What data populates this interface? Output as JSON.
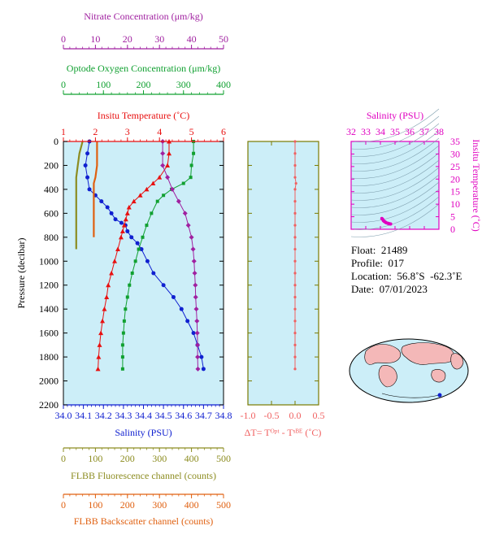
{
  "colors": {
    "salinity": "#1020d0",
    "temperature": "#e81010",
    "oxygen": "#10a030",
    "nitrate": "#a020a0",
    "fluorescence": "#8c8c20",
    "backscatter": "#e06010",
    "deltaT": "#f06060",
    "ts_axis": "#e000c0",
    "plot_bg": "#cceef8",
    "frame": "#7a7a00"
  },
  "info": {
    "float_line": "Float:  21489",
    "profile_line": "Profile:  017",
    "location_line": "Location:  56.8˚S  -62.3˚E",
    "date_line": "Date:  07/01/2023"
  },
  "chart_data": [
    {
      "type": "line",
      "id": "main_profile",
      "ylabel": "Pressure (decibar)",
      "ylim": [
        0,
        2200
      ],
      "y_ticks": [
        "0",
        "200",
        "400",
        "600",
        "800",
        "1000",
        "1200",
        "1400",
        "1600",
        "1800",
        "2000",
        "2200"
      ],
      "axes": {
        "nitrate": {
          "label": "Nitrate Concentration (μm/kg)",
          "range": [
            0,
            50
          ],
          "ticks": [
            "0",
            "10",
            "20",
            "30",
            "40",
            "50"
          ]
        },
        "oxygen": {
          "label": "Optode Oxygen Concentration (μm/kg)",
          "range": [
            0,
            400
          ],
          "ticks": [
            "0",
            "100",
            "200",
            "300",
            "400"
          ]
        },
        "temperature": {
          "label": "Insitu Temperature (˚C)",
          "range": [
            1,
            6
          ],
          "ticks": [
            "1",
            "2",
            "3",
            "4",
            "5",
            "6"
          ]
        },
        "salinity": {
          "label": "Salinity (PSU)",
          "range": [
            34.0,
            34.8
          ],
          "ticks": [
            "34.0",
            "34.1",
            "34.2",
            "34.3",
            "34.4",
            "34.5",
            "34.6",
            "34.7",
            "34.8"
          ]
        },
        "fluorescence": {
          "label": "FLBB Fluorescence channel (counts)",
          "range": [
            0,
            500
          ],
          "ticks": [
            "0",
            "100",
            "200",
            "300",
            "400",
            "500"
          ]
        },
        "backscatter": {
          "label": "FLBB Backscatter channel (counts)",
          "range": [
            0,
            500
          ],
          "ticks": [
            "0",
            "100",
            "200",
            "300",
            "400",
            "500"
          ]
        }
      },
      "series": [
        {
          "key": "salinity",
          "marker": "circle",
          "points": [
            [
              34.13,
              0
            ],
            [
              34.12,
              100
            ],
            [
              34.11,
              200
            ],
            [
              34.12,
              300
            ],
            [
              34.13,
              400
            ],
            [
              34.16,
              450
            ],
            [
              34.19,
              500
            ],
            [
              34.22,
              550
            ],
            [
              34.24,
              600
            ],
            [
              34.26,
              650
            ],
            [
              34.29,
              680
            ],
            [
              34.31,
              700
            ],
            [
              34.32,
              750
            ],
            [
              34.34,
              800
            ],
            [
              34.37,
              850
            ],
            [
              34.39,
              900
            ],
            [
              34.42,
              1000
            ],
            [
              34.45,
              1100
            ],
            [
              34.5,
              1200
            ],
            [
              34.55,
              1300
            ],
            [
              34.59,
              1400
            ],
            [
              34.62,
              1500
            ],
            [
              34.65,
              1600
            ],
            [
              34.67,
              1700
            ],
            [
              34.69,
              1800
            ],
            [
              34.7,
              1900
            ]
          ]
        },
        {
          "key": "temperature",
          "marker": "triangle",
          "points": [
            [
              4.3,
              0
            ],
            [
              4.3,
              100
            ],
            [
              4.25,
              200
            ],
            [
              4.0,
              300
            ],
            [
              3.8,
              350
            ],
            [
              3.6,
              400
            ],
            [
              3.4,
              450
            ],
            [
              3.2,
              500
            ],
            [
              3.05,
              550
            ],
            [
              3.0,
              600
            ],
            [
              2.95,
              650
            ],
            [
              2.9,
              700
            ],
            [
              2.85,
              750
            ],
            [
              2.8,
              800
            ],
            [
              2.7,
              900
            ],
            [
              2.6,
              1000
            ],
            [
              2.5,
              1100
            ],
            [
              2.4,
              1200
            ],
            [
              2.35,
              1300
            ],
            [
              2.28,
              1400
            ],
            [
              2.22,
              1500
            ],
            [
              2.17,
              1600
            ],
            [
              2.13,
              1700
            ],
            [
              2.1,
              1800
            ],
            [
              2.08,
              1900
            ]
          ]
        },
        {
          "key": "oxygen",
          "marker": "square",
          "points": [
            [
              325,
              0
            ],
            [
              325,
              100
            ],
            [
              320,
              200
            ],
            [
              318,
              300
            ],
            [
              300,
              350
            ],
            [
              270,
              400
            ],
            [
              250,
              450
            ],
            [
              235,
              500
            ],
            [
              220,
              600
            ],
            [
              208,
              700
            ],
            [
              198,
              800
            ],
            [
              188,
              900
            ],
            [
              180,
              1000
            ],
            [
              172,
              1100
            ],
            [
              165,
              1200
            ],
            [
              160,
              1300
            ],
            [
              155,
              1400
            ],
            [
              152,
              1500
            ],
            [
              150,
              1600
            ],
            [
              148,
              1700
            ],
            [
              148,
              1800
            ],
            [
              148,
              1900
            ]
          ]
        },
        {
          "key": "nitrate",
          "marker": "diamond",
          "points": [
            [
              31,
              0
            ],
            [
              31,
              100
            ],
            [
              31,
              200
            ],
            [
              32.5,
              300
            ],
            [
              34,
              400
            ],
            [
              36,
              500
            ],
            [
              38,
              600
            ],
            [
              39,
              700
            ],
            [
              40,
              800
            ],
            [
              40.5,
              900
            ],
            [
              40.8,
              1000
            ],
            [
              41,
              1100
            ],
            [
              41.2,
              1200
            ],
            [
              41.3,
              1300
            ],
            [
              41.5,
              1400
            ],
            [
              41.7,
              1500
            ],
            [
              41.8,
              1600
            ],
            [
              41.9,
              1700
            ],
            [
              41.9,
              1800
            ],
            [
              42,
              1900
            ]
          ]
        },
        {
          "key": "fluorescence",
          "marker": "none",
          "points": [
            [
              60,
              0
            ],
            [
              50,
              100
            ],
            [
              45,
              200
            ],
            [
              40,
              300
            ],
            [
              40,
              400
            ],
            [
              40,
              500
            ],
            [
              40,
              600
            ],
            [
              40,
              700
            ],
            [
              40,
              800
            ],
            [
              40,
              900
            ]
          ]
        },
        {
          "key": "backscatter",
          "marker": "none",
          "points": [
            [
              105,
              0
            ],
            [
              105,
              100
            ],
            [
              105,
              200
            ],
            [
              100,
              300
            ],
            [
              95,
              350
            ],
            [
              95,
              400
            ],
            [
              95,
              500
            ],
            [
              95,
              600
            ],
            [
              95,
              700
            ],
            [
              95,
              800
            ]
          ]
        }
      ]
    },
    {
      "type": "line",
      "id": "delta_t",
      "xlabel": "ΔT= Tᴼᵖᵗ - Tˢᴮᴱ (˚C)",
      "xlim": [
        -1.0,
        0.5
      ],
      "x_ticks": [
        "-1.0",
        "-0.5",
        "0.0",
        "0.5"
      ],
      "ylim": [
        0,
        2200
      ],
      "series": [
        {
          "key": "deltaT",
          "points": [
            [
              0.0,
              0
            ],
            [
              0.0,
              100
            ],
            [
              0.0,
              200
            ],
            [
              0.0,
              300
            ],
            [
              0.02,
              350
            ],
            [
              0.0,
              400
            ],
            [
              0.0,
              500
            ],
            [
              0.0,
              600
            ],
            [
              0.0,
              700
            ],
            [
              0.0,
              800
            ],
            [
              0.0,
              900
            ],
            [
              0.0,
              1000
            ],
            [
              0.0,
              1100
            ],
            [
              0.0,
              1200
            ],
            [
              0.0,
              1300
            ],
            [
              0.0,
              1400
            ],
            [
              0.0,
              1500
            ],
            [
              0.0,
              1600
            ],
            [
              0.0,
              1700
            ],
            [
              0.0,
              1800
            ],
            [
              0.0,
              1900
            ]
          ]
        }
      ]
    },
    {
      "type": "scatter",
      "id": "ts_diagram",
      "title": "Salinity (PSU)",
      "ylabel": "Insitu Temperature (˚C)",
      "xlim": [
        32,
        38
      ],
      "x_ticks": [
        "32",
        "33",
        "34",
        "35",
        "36",
        "37",
        "38"
      ],
      "ylim": [
        0,
        35
      ],
      "y_ticks": [
        "0",
        "5",
        "10",
        "15",
        "20",
        "25",
        "30",
        "35"
      ],
      "points": [
        [
          34.1,
          4.3
        ],
        [
          34.2,
          3.5
        ],
        [
          34.3,
          3.0
        ],
        [
          34.4,
          2.6
        ],
        [
          34.5,
          2.4
        ],
        [
          34.6,
          2.2
        ],
        [
          34.7,
          2.1
        ],
        [
          34.15,
          4.0
        ],
        [
          34.25,
          3.2
        ],
        [
          34.55,
          2.3
        ],
        [
          34.65,
          2.15
        ],
        [
          34.35,
          2.8
        ]
      ]
    }
  ]
}
